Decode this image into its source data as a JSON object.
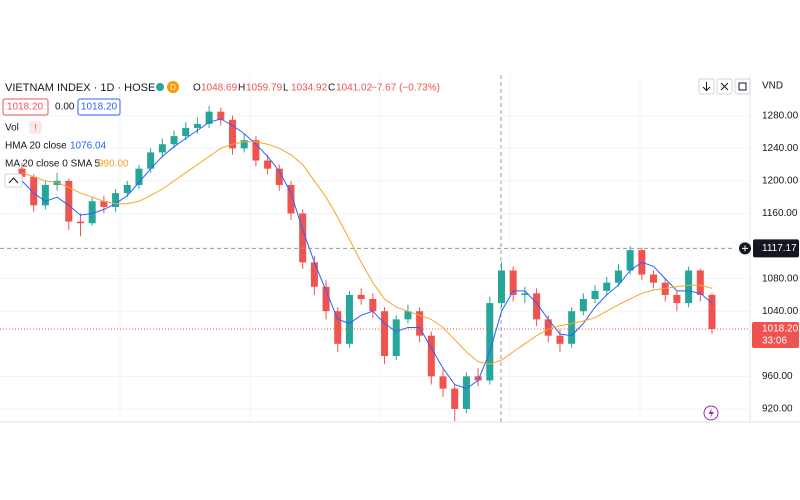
{
  "header": {
    "symbol": "VIETNAM INDEX · 1D · HOSE",
    "badge": "D",
    "ohlc": [
      {
        "key": "O",
        "text": "1048.69"
      },
      {
        "key": "H",
        "text": "1059.79"
      },
      {
        "key": "L",
        "text": "1034.92"
      },
      {
        "key": "C",
        "text": "1041.02"
      }
    ],
    "change": "−7.67 (−0.73%)",
    "sell": "1018.20",
    "spread": "0.00",
    "buy": "1018.20",
    "volume": "Vol",
    "currency": "VND"
  },
  "chart_data": {
    "type": "candlestick",
    "open": [
      1215,
      1205,
      1170,
      1195,
      1200,
      1150,
      1148,
      1175,
      1168,
      1185,
      1195,
      1215,
      1235,
      1245,
      1255,
      1265,
      1270,
      1285,
      1275,
      1240,
      1250,
      1225,
      1215,
      1195,
      1160,
      1100,
      1070,
      1040,
      1000,
      1060,
      1055,
      1040,
      985,
      1030,
      1040,
      1010,
      960,
      945,
      920,
      960,
      955,
      1050,
      1090,
      1060,
      1062,
      1030,
      1010,
      1000,
      1040,
      1055,
      1065,
      1075,
      1090,
      1115,
      1085,
      1075,
      1060,
      1050,
      1090,
      1060
    ],
    "high": [
      1222,
      1208,
      1200,
      1210,
      1203,
      1160,
      1180,
      1182,
      1190,
      1200,
      1220,
      1240,
      1252,
      1262,
      1272,
      1278,
      1292,
      1290,
      1280,
      1258,
      1255,
      1232,
      1220,
      1200,
      1165,
      1108,
      1078,
      1045,
      1065,
      1068,
      1062,
      1045,
      1035,
      1048,
      1045,
      1015,
      968,
      950,
      965,
      970,
      1058,
      1100,
      1095,
      1070,
      1068,
      1035,
      1018,
      1045,
      1062,
      1072,
      1082,
      1098,
      1120,
      1118,
      1090,
      1080,
      1065,
      1095,
      1092,
      1062
    ],
    "low": [
      1198,
      1162,
      1165,
      1188,
      1140,
      1132,
      1145,
      1160,
      1162,
      1180,
      1190,
      1210,
      1230,
      1240,
      1250,
      1258,
      1265,
      1268,
      1232,
      1235,
      1218,
      1208,
      1188,
      1152,
      1092,
      1060,
      1030,
      990,
      995,
      1048,
      1032,
      975,
      980,
      1025,
      1002,
      950,
      935,
      905,
      915,
      948,
      950,
      1045,
      1052,
      1050,
      1022,
      1002,
      990,
      995,
      1035,
      1050,
      1060,
      1070,
      1085,
      1078,
      1068,
      1052,
      1040,
      1045,
      1052,
      1012
    ],
    "close": [
      1205,
      1170,
      1195,
      1200,
      1150,
      1148,
      1175,
      1168,
      1185,
      1195,
      1215,
      1235,
      1245,
      1255,
      1265,
      1270,
      1285,
      1275,
      1240,
      1250,
      1225,
      1215,
      1195,
      1160,
      1100,
      1070,
      1040,
      1000,
      1060,
      1055,
      1040,
      985,
      1030,
      1040,
      1010,
      960,
      945,
      920,
      960,
      955,
      1050,
      1090,
      1060,
      1062,
      1030,
      1010,
      1000,
      1040,
      1055,
      1065,
      1075,
      1090,
      1115,
      1085,
      1075,
      1060,
      1050,
      1090,
      1060,
      1018.2
    ],
    "up_color": "#26a69a",
    "down_color": "#ef5350",
    "series": [
      {
        "name": "HMA 20 close",
        "legend_value": "1076.04",
        "color": "#2962ff",
        "values": [
          1200,
          1185,
          1175,
          1180,
          1170,
          1158,
          1160,
          1165,
          1172,
          1182,
          1198,
          1215,
          1230,
          1242,
          1252,
          1262,
          1272,
          1276,
          1268,
          1258,
          1245,
          1230,
          1212,
          1185,
          1140,
          1100,
          1065,
          1030,
          1025,
          1035,
          1040,
          1025,
          1015,
          1020,
          1020,
          995,
          970,
          950,
          945,
          955,
          990,
          1040,
          1065,
          1065,
          1050,
          1030,
          1012,
          1010,
          1025,
          1045,
          1060,
          1072,
          1090,
          1100,
          1095,
          1080,
          1065,
          1065,
          1062,
          1050
        ]
      },
      {
        "name": "MA 20 close 0 SMA 5",
        "legend_value": "990.00",
        "color": "#f5a623",
        "values": [
          1210,
          1205,
          1200,
          1198,
          1192,
          1185,
          1180,
          1175,
          1172,
          1172,
          1175,
          1182,
          1190,
          1200,
          1210,
          1220,
          1230,
          1240,
          1245,
          1248,
          1248,
          1245,
          1240,
          1232,
          1220,
          1200,
          1180,
          1155,
          1128,
          1100,
          1075,
          1055,
          1045,
          1040,
          1035,
          1030,
          1020,
          1005,
          990,
          978,
          975,
          980,
          990,
          1000,
          1010,
          1018,
          1022,
          1025,
          1028,
          1032,
          1040,
          1048,
          1055,
          1062,
          1066,
          1068,
          1070,
          1072,
          1072,
          1068
        ]
      }
    ],
    "ylim": [
      904,
      1330
    ],
    "yticks": [
      {
        "value": 920,
        "label": "920.00"
      },
      {
        "value": 960,
        "label": "960.00"
      },
      {
        "value": 1040,
        "label": "1040.00"
      },
      {
        "value": 1080,
        "label": "1080.00"
      },
      {
        "value": 1160,
        "label": "1160.00"
      },
      {
        "value": 1200,
        "label": "1200.00"
      },
      {
        "value": 1240,
        "label": "1240.00"
      },
      {
        "value": 1280,
        "label": "1280.00"
      }
    ],
    "grid": true,
    "last_price": {
      "value": 1018.2,
      "label": "1018.20"
    },
    "countdown": "33:06",
    "crosshair_price": {
      "value": 1117.17,
      "label": "1117.17"
    }
  }
}
